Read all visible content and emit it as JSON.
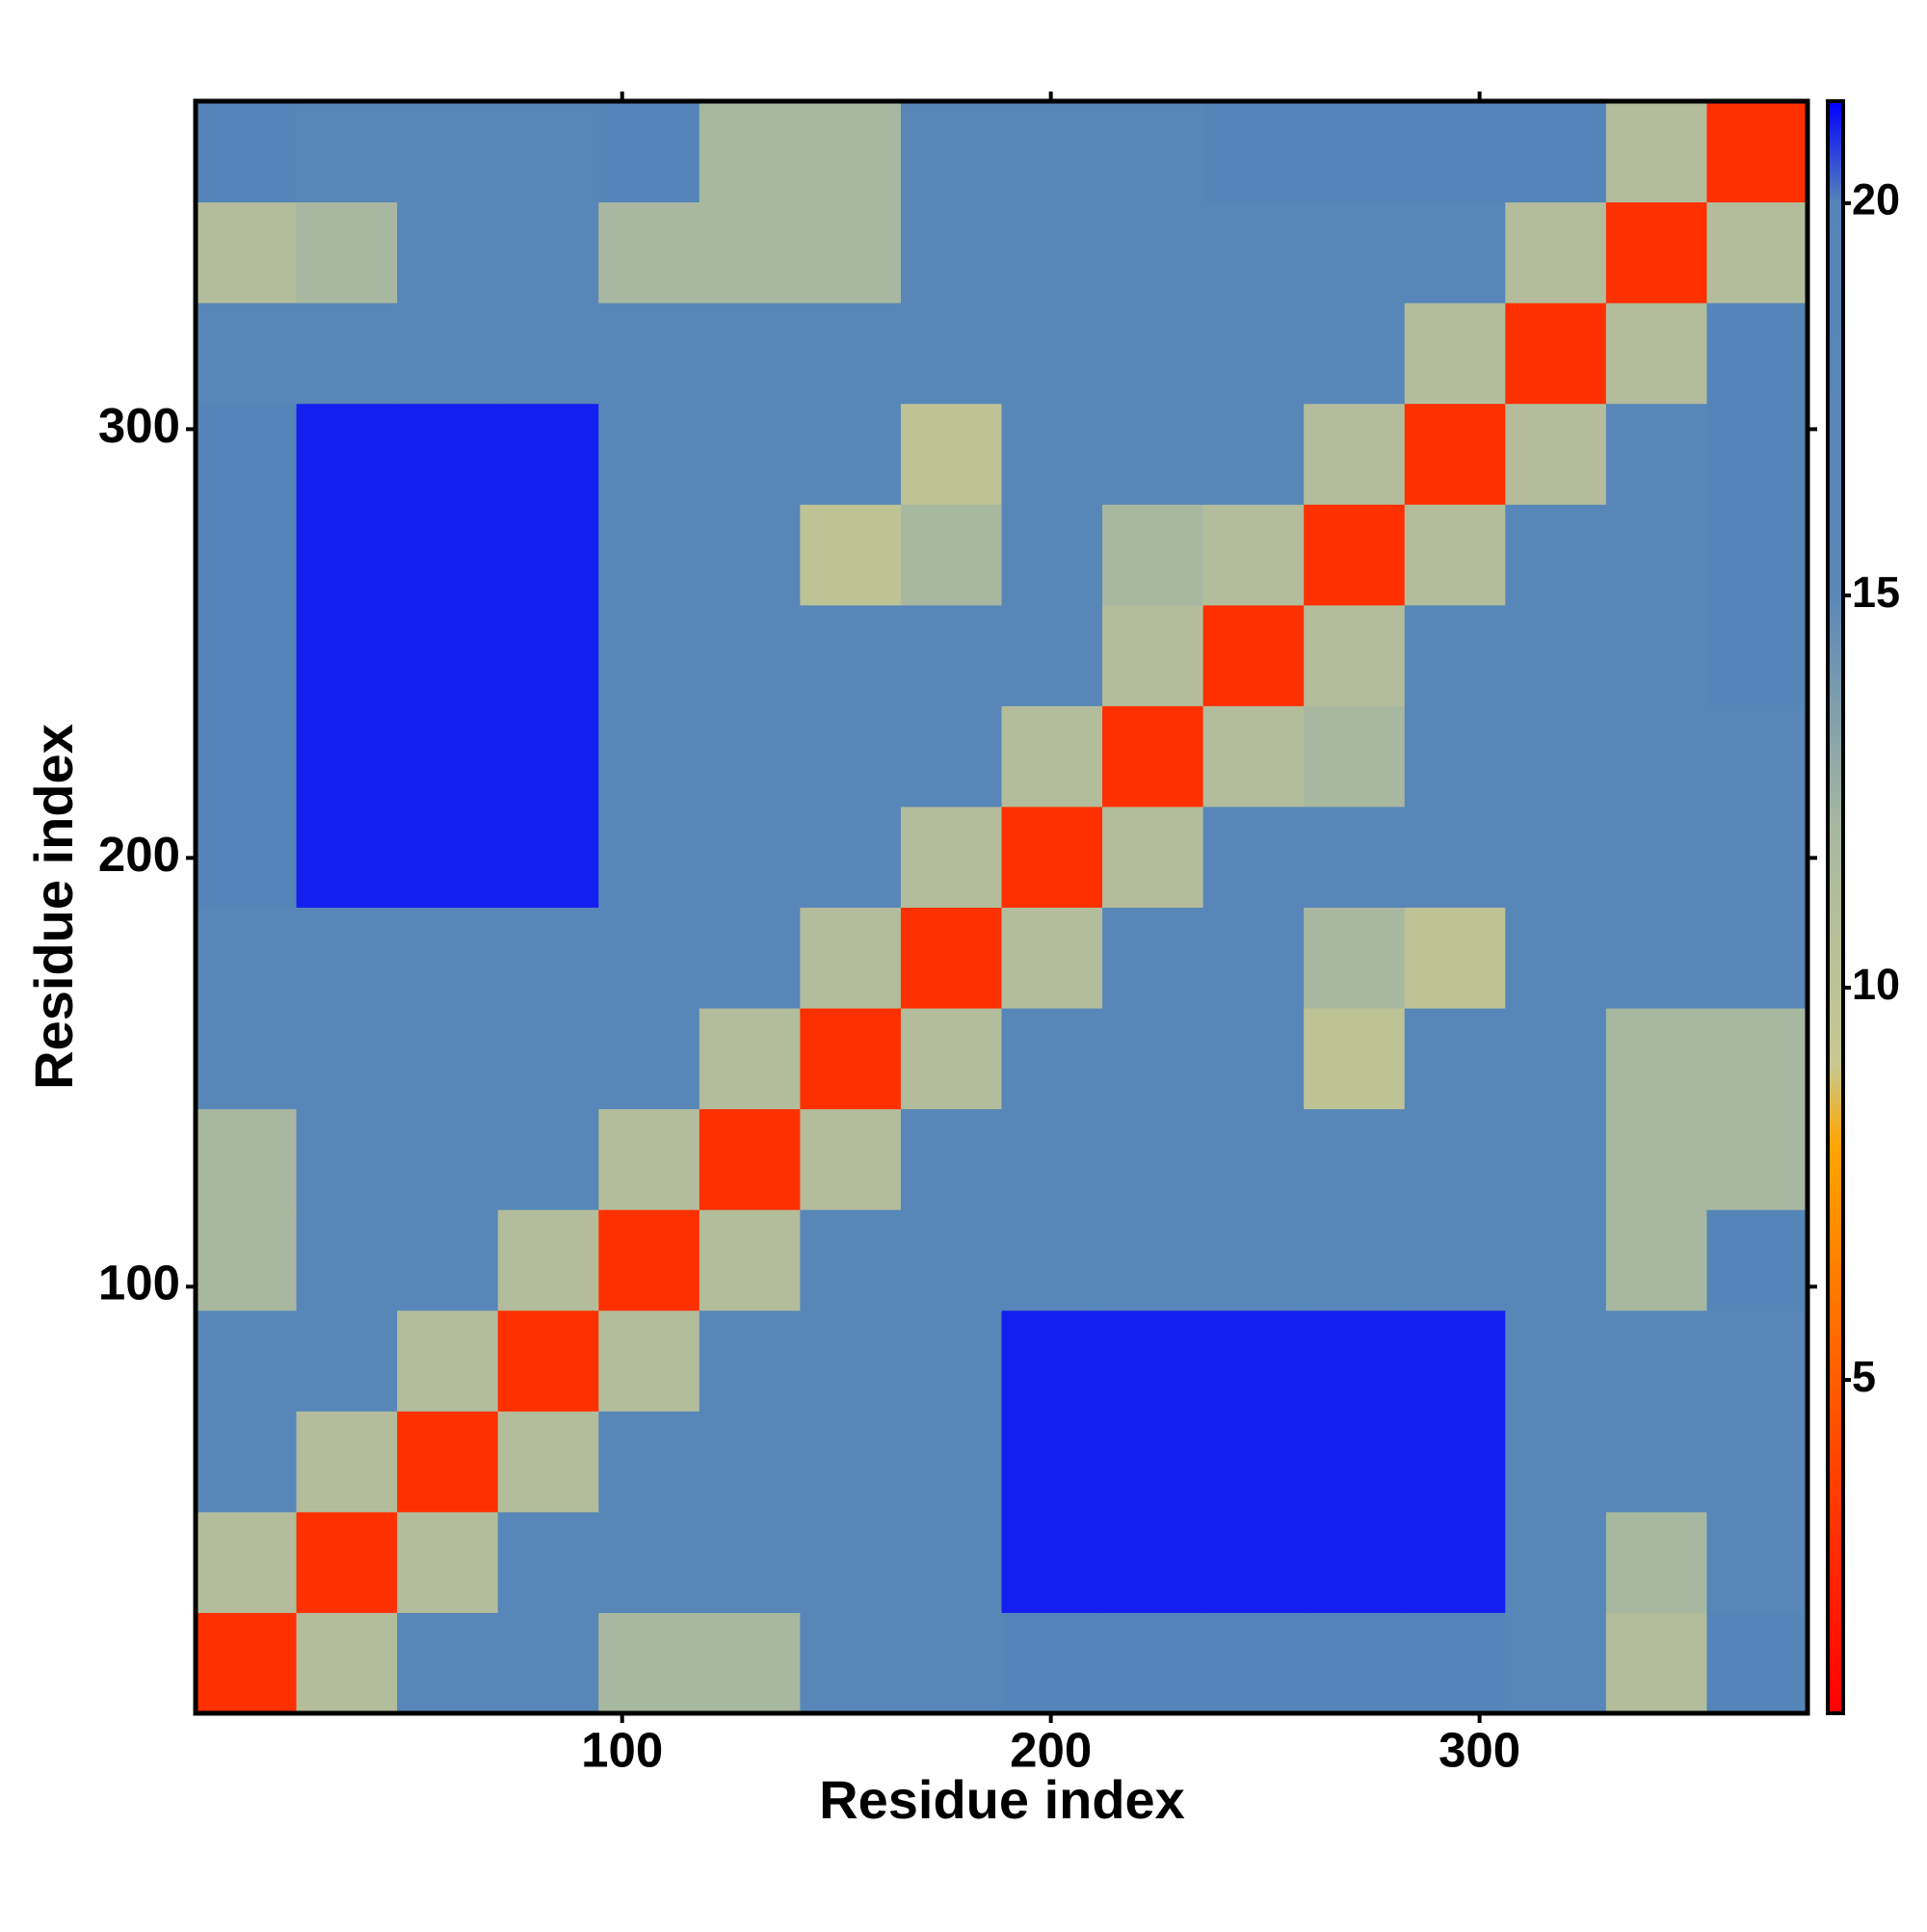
{
  "chart_data": {
    "type": "heatmap",
    "x_label": "Residue index",
    "y_label": "Residue index",
    "xbins": [
      0.5,
      24,
      47.5,
      71,
      94.5,
      118,
      141.5,
      165,
      188.5,
      212,
      235.5,
      259,
      282.5,
      306,
      329.5,
      353,
      376.5
    ],
    "ybins": [
      0.5,
      24,
      47.5,
      71,
      94.5,
      118,
      141.5,
      165,
      188.5,
      212,
      235.5,
      259,
      282.5,
      306,
      329.5,
      353,
      376.5
    ],
    "xlim": [
      0.5,
      376.5
    ],
    "ylim": [
      0.5,
      376.5
    ],
    "xticks": [
      100,
      200,
      300
    ],
    "yticks": [
      100,
      200,
      300
    ],
    "values": [
      [
        3,
        11,
        17,
        17,
        12,
        12,
        17,
        17,
        20,
        20,
        20,
        20,
        20,
        17,
        11,
        20
      ],
      [
        11,
        3,
        11,
        17,
        17,
        17,
        17,
        17,
        21,
        21,
        21,
        21,
        21,
        17,
        12,
        17
      ],
      [
        17,
        11,
        3,
        11,
        17,
        17,
        17,
        17,
        21,
        21,
        21,
        21,
        21,
        17,
        17,
        17
      ],
      [
        17,
        17,
        11,
        3,
        11,
        17,
        17,
        17,
        21,
        21,
        21,
        21,
        21,
        17,
        17,
        17
      ],
      [
        12,
        17,
        17,
        11,
        3,
        11,
        17,
        17,
        17,
        17,
        17,
        17,
        17,
        17,
        12,
        20
      ],
      [
        12,
        17,
        17,
        17,
        11,
        3,
        11,
        17,
        17,
        17,
        17,
        17,
        17,
        17,
        12,
        12
      ],
      [
        17,
        17,
        17,
        17,
        17,
        11,
        3,
        11,
        17,
        17,
        17,
        10,
        17,
        17,
        12,
        12
      ],
      [
        17,
        17,
        17,
        17,
        17,
        17,
        11,
        3,
        11,
        17,
        17,
        12,
        10,
        17,
        17,
        17
      ],
      [
        20,
        21,
        21,
        21,
        17,
        17,
        17,
        11,
        3,
        11,
        17,
        17,
        17,
        17,
        17,
        17
      ],
      [
        20,
        21,
        21,
        21,
        17,
        17,
        17,
        17,
        11,
        3,
        11,
        12,
        17,
        17,
        17,
        17
      ],
      [
        20,
        21,
        21,
        21,
        17,
        17,
        17,
        17,
        17,
        11,
        3,
        11,
        17,
        17,
        17,
        20
      ],
      [
        20,
        21,
        21,
        21,
        17,
        17,
        10,
        12,
        17,
        12,
        11,
        3,
        11,
        17,
        17,
        20
      ],
      [
        20,
        21,
        21,
        21,
        17,
        17,
        17,
        10,
        17,
        17,
        17,
        11,
        3,
        11,
        17,
        20
      ],
      [
        17,
        17,
        17,
        17,
        17,
        17,
        17,
        17,
        17,
        17,
        17,
        17,
        11,
        3,
        11,
        20
      ],
      [
        11,
        12,
        17,
        17,
        12,
        12,
        12,
        17,
        17,
        17,
        17,
        17,
        17,
        11,
        3,
        11
      ],
      [
        20,
        17,
        17,
        17,
        20,
        12,
        12,
        17,
        17,
        17,
        20,
        20,
        20,
        20,
        11,
        3
      ]
    ],
    "colorscale": [
      {
        "value": 0.75,
        "color": "#ff0000"
      },
      {
        "value": 4,
        "color": "#ff4500"
      },
      {
        "value": 8,
        "color": "#ffa500"
      },
      {
        "value": 9,
        "color": "#c8c890"
      },
      {
        "value": 12,
        "color": "#a8b8a0"
      },
      {
        "value": 15,
        "color": "#5a87b8"
      },
      {
        "value": 20,
        "color": "#5585b8"
      },
      {
        "value": 21.3,
        "color": "#0000ff"
      }
    ],
    "colorlim": [
      0.75,
      21.3
    ],
    "colorticks": [
      5,
      10,
      15,
      20
    ]
  }
}
